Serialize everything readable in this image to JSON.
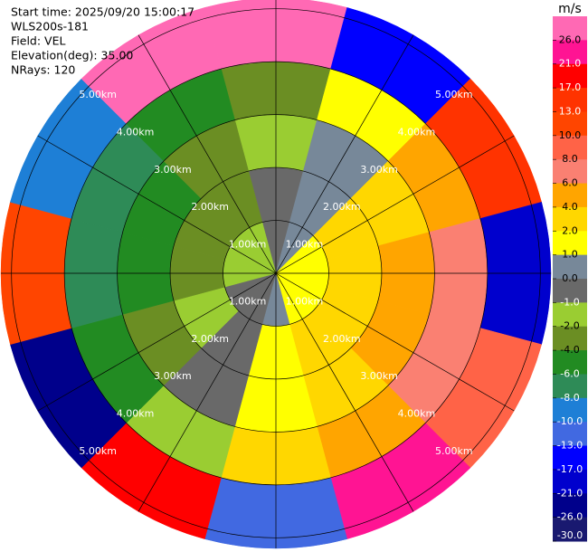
{
  "chart_data": {
    "type": "ppi",
    "annotations": [
      "Start time: 2025/09/20 15:00:17",
      "WLS200s-181",
      "Field: VEL",
      "Elevation(deg): 35.00",
      "NRays: 120"
    ],
    "range_rings": [
      {
        "value": 1,
        "label": "1.00km"
      },
      {
        "value": 2,
        "label": "2.00km"
      },
      {
        "value": 3,
        "label": "3.00km"
      },
      {
        "value": 4,
        "label": "4.00km"
      },
      {
        "value": 5,
        "label": "5.00km"
      }
    ],
    "rlim": [
      0,
      5.2
    ],
    "field": {
      "azimuth_edges": [
        -15,
        15,
        45,
        75,
        105,
        135,
        165,
        195,
        225,
        255,
        285,
        315,
        345
      ],
      "range_edges": [
        0,
        1,
        2,
        3,
        4,
        5.2
      ],
      "values": [
        [
          -0.5,
          0.3,
          1,
          1.5,
          1.5,
          1.2,
          0.5,
          -0.3,
          -1,
          -1.5,
          -1.5,
          -1.2
        ],
        [
          -1,
          0.5,
          2,
          3,
          3,
          2.3,
          1,
          -0.5,
          -2,
          -3,
          -3,
          -2.3
        ],
        [
          -1.7,
          0.8,
          3.2,
          4.7,
          5,
          3.8,
          1.7,
          -0.8,
          -3.2,
          -4.7,
          -5,
          -3.8
        ],
        [
          -2.4,
          1.2,
          4.5,
          6.6,
          7,
          5.4,
          2.4,
          -1.2,
          -4.5,
          -6.6,
          -7,
          -5.4
        ],
        [
          26,
          -17,
          13,
          -21,
          8,
          21,
          -13,
          17,
          -26,
          10,
          -10,
          26
        ]
      ]
    },
    "colorbar": {
      "label": "m/s",
      "ticks": [
        {
          "value": 26,
          "label": "26.0"
        },
        {
          "value": 21,
          "label": "21.0"
        },
        {
          "value": 17,
          "label": "17.0"
        },
        {
          "value": 13,
          "label": "13.0"
        },
        {
          "value": 10,
          "label": "10.0"
        },
        {
          "value": 8,
          "label": "8.0"
        },
        {
          "value": 6,
          "label": "6.0"
        },
        {
          "value": 4,
          "label": "4.0"
        },
        {
          "value": 2,
          "label": "2.0"
        },
        {
          "value": 1,
          "label": "1.0"
        },
        {
          "value": 0,
          "label": "0.0"
        },
        {
          "value": -1,
          "label": "-1.0"
        },
        {
          "value": -2,
          "label": "-2.0"
        },
        {
          "value": -4,
          "label": "-4.0"
        },
        {
          "value": -6,
          "label": "-6.0"
        },
        {
          "value": -8,
          "label": "-8.0"
        },
        {
          "value": -10,
          "label": "-10.0"
        },
        {
          "value": -13,
          "label": "-13.0"
        },
        {
          "value": -17,
          "label": "-17.0"
        },
        {
          "value": -21,
          "label": "-21.0"
        },
        {
          "value": -26,
          "label": "-26.0"
        },
        {
          "value": -30,
          "label": "-30.0"
        }
      ],
      "colors": [
        "#ff69b4",
        "#ff1493",
        "#ff0000",
        "#ff3300",
        "#ff4500",
        "#ff6347",
        "#fa8072",
        "#ffa500",
        "#ffd700",
        "#ffff00",
        "#778899",
        "#696969",
        "#9acd32",
        "#6b8e23",
        "#228b22",
        "#2e8b57",
        "#1e7fd6",
        "#4169e1",
        "#0000ff",
        "#0000cd",
        "#00008b",
        "#191970"
      ]
    }
  }
}
